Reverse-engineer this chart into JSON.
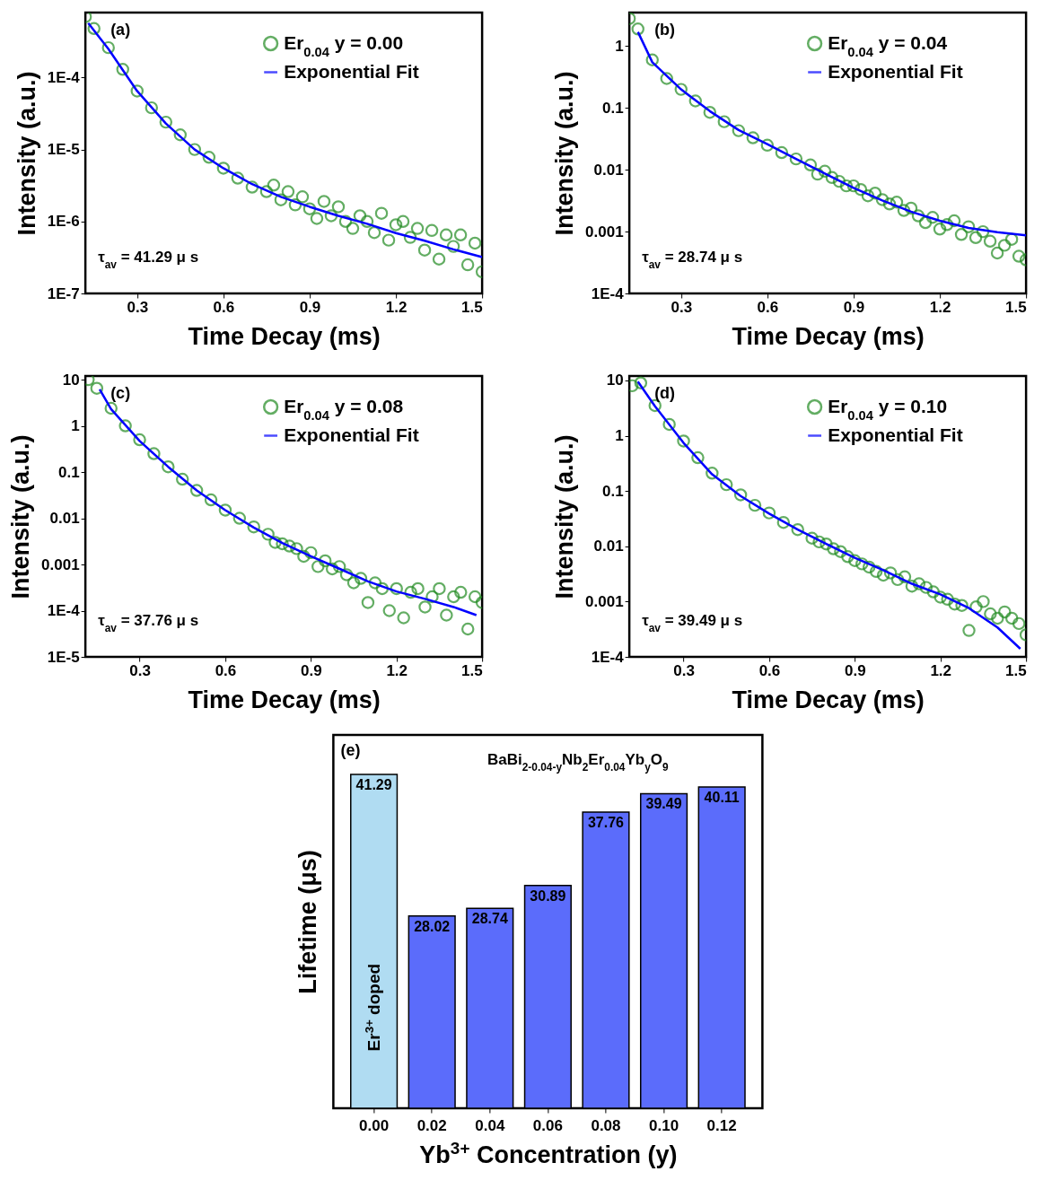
{
  "chart_data": [
    {
      "type": "scatter",
      "xlabel": "Time Decay (ms)",
      "ylabel": "Intensity (a.u.)",
      "annotations": [
        "(a)",
        "τ$_{av}$ = 41.29 μ s"
      ],
      "xlim": [
        0.12,
        1.5
      ],
      "xticks": [
        0.3,
        0.6,
        0.9,
        1.2,
        1.5
      ],
      "ylim": [
        1e-07,
        0.0008
      ],
      "yticks": [
        {
          "value": 1e-07,
          "label": "1E-7"
        },
        {
          "value": 1e-06,
          "label": "1E-6"
        },
        {
          "value": 1e-05,
          "label": "1E-5"
        },
        {
          "value": 0.0001,
          "label": "1E-4"
        }
      ],
      "log": true,
      "legend": "top right",
      "series": [
        {
          "name": "Er$_{0.04}$ y = 0.00",
          "type": "scatter",
          "marker": "circle",
          "color": "#228b22",
          "x": [
            0.12,
            0.15,
            0.2,
            0.25,
            0.3,
            0.35,
            0.4,
            0.45,
            0.5,
            0.55,
            0.6,
            0.65,
            0.7,
            0.75,
            0.775,
            0.8,
            0.825,
            0.85,
            0.875,
            0.9,
            0.925,
            0.95,
            0.975,
            1.0,
            1.025,
            1.05,
            1.075,
            1.1,
            1.125,
            1.15,
            1.175,
            1.2,
            1.225,
            1.25,
            1.275,
            1.3,
            1.325,
            1.35,
            1.375,
            1.4,
            1.425,
            1.45,
            1.475,
            1.5
          ],
          "values": [
            0.0007,
            0.00048,
            0.00026,
            0.00013,
            6.5e-05,
            3.8e-05,
            2.4e-05,
            1.6e-05,
            1e-05,
            7.8e-06,
            5.5e-06,
            4e-06,
            3e-06,
            2.6e-06,
            3.2e-06,
            2e-06,
            2.6e-06,
            1.7e-06,
            2.2e-06,
            1.5e-06,
            1.1e-06,
            1.9e-06,
            1.2e-06,
            1.6e-06,
            1e-06,
            8e-07,
            1.2e-06,
            1e-06,
            7e-07,
            1.3e-06,
            5.5e-07,
            9e-07,
            1e-06,
            6e-07,
            8e-07,
            4e-07,
            7.5e-07,
            3e-07,
            6.5e-07,
            4.5e-07,
            6.5e-07,
            2.5e-07,
            5e-07,
            2e-07
          ]
        },
        {
          "name": "Exponential Fit",
          "type": "line",
          "color": "#0000ff",
          "x": [
            0.13,
            0.2,
            0.3,
            0.4,
            0.5,
            0.6,
            0.7,
            0.8,
            0.9,
            1.0,
            1.1,
            1.2,
            1.3,
            1.4,
            1.5
          ],
          "values": [
            0.00057,
            0.00025,
            6.5e-05,
            2.3e-05,
            1e-05,
            5.5e-06,
            3.3e-06,
            2.2e-06,
            1.6e-06,
            1.2e-06,
            9.3e-07,
            6.9e-07,
            5.4e-07,
            4.1e-07,
            3.2e-07
          ]
        }
      ]
    },
    {
      "type": "scatter",
      "xlabel": "Time Decay (ms)",
      "ylabel": "Intensity (a.u.)",
      "annotations": [
        "(b)",
        "τ$_{av}$ = 28.74 μ s"
      ],
      "xlim": [
        0.12,
        1.5
      ],
      "xticks": [
        0.3,
        0.6,
        0.9,
        1.2,
        1.5
      ],
      "ylim": [
        0.0001,
        3.5
      ],
      "yticks": [
        {
          "value": 0.0001,
          "label": "1E-4"
        },
        0.001,
        0.01,
        0.1,
        1
      ],
      "log": true,
      "legend": "top right",
      "series": [
        {
          "name": "Er$_{0.04}$ y = 0.04",
          "type": "scatter",
          "marker": "circle",
          "color": "#228b22",
          "x": [
            0.12,
            0.15,
            0.2,
            0.25,
            0.3,
            0.35,
            0.4,
            0.45,
            0.5,
            0.55,
            0.6,
            0.65,
            0.7,
            0.75,
            0.775,
            0.8,
            0.825,
            0.85,
            0.875,
            0.9,
            0.925,
            0.95,
            0.975,
            1.0,
            1.025,
            1.05,
            1.075,
            1.1,
            1.125,
            1.15,
            1.175,
            1.2,
            1.225,
            1.25,
            1.275,
            1.3,
            1.325,
            1.35,
            1.375,
            1.4,
            1.425,
            1.45,
            1.475,
            1.5
          ],
          "values": [
            2.8,
            1.9,
            0.6,
            0.3,
            0.2,
            0.13,
            0.085,
            0.06,
            0.043,
            0.033,
            0.025,
            0.019,
            0.015,
            0.012,
            0.0085,
            0.0095,
            0.0075,
            0.0065,
            0.0055,
            0.0055,
            0.0048,
            0.0038,
            0.0042,
            0.0033,
            0.0028,
            0.003,
            0.0022,
            0.0024,
            0.0018,
            0.0014,
            0.0017,
            0.0011,
            0.0013,
            0.0015,
            0.0009,
            0.0012,
            0.0008,
            0.001,
            0.0007,
            0.00045,
            0.0006,
            0.00075,
            0.0004,
            0.00035
          ]
        },
        {
          "name": "Exponential Fit",
          "type": "line",
          "color": "#0000ff",
          "x": [
            0.15,
            0.2,
            0.3,
            0.4,
            0.5,
            0.6,
            0.7,
            0.8,
            0.9,
            1.0,
            1.1,
            1.2,
            1.3,
            1.4,
            1.5
          ],
          "values": [
            1.7,
            0.55,
            0.2,
            0.089,
            0.044,
            0.026,
            0.015,
            0.0087,
            0.0051,
            0.0032,
            0.0021,
            0.0015,
            0.00115,
            0.00098,
            0.00087
          ]
        }
      ]
    },
    {
      "type": "scatter",
      "xlabel": "Time Decay (ms)",
      "ylabel": "Intensity (a.u.)",
      "annotations": [
        "(c)",
        "τ$_{av}$ = 37.76 μ s"
      ],
      "xlim": [
        0.11,
        1.5
      ],
      "xticks": [
        0.3,
        0.6,
        0.9,
        1.2,
        1.5
      ],
      "ylim": [
        1e-05,
        12
      ],
      "yticks": [
        {
          "value": 1e-05,
          "label": "1E-5"
        },
        {
          "value": 0.0001,
          "label": "1E-4"
        },
        0.001,
        0.01,
        0.1,
        1,
        10
      ],
      "log": true,
      "legend": "top right",
      "series": [
        {
          "name": "Er$_{0.04}$ y = 0.08",
          "type": "scatter",
          "marker": "circle",
          "color": "#228b22",
          "x": [
            0.12,
            0.15,
            0.2,
            0.25,
            0.3,
            0.35,
            0.4,
            0.45,
            0.5,
            0.55,
            0.6,
            0.65,
            0.7,
            0.75,
            0.775,
            0.8,
            0.825,
            0.85,
            0.875,
            0.9,
            0.925,
            0.95,
            0.975,
            1.0,
            1.025,
            1.05,
            1.075,
            1.1,
            1.125,
            1.15,
            1.175,
            1.2,
            1.225,
            1.25,
            1.275,
            1.3,
            1.325,
            1.35,
            1.375,
            1.4,
            1.425,
            1.45,
            1.475,
            1.5
          ],
          "values": [
            10,
            6.5,
            2.4,
            1.0,
            0.5,
            0.25,
            0.13,
            0.07,
            0.04,
            0.025,
            0.015,
            0.01,
            0.0065,
            0.0045,
            0.003,
            0.0028,
            0.0025,
            0.0022,
            0.0015,
            0.0018,
            0.0009,
            0.0012,
            0.0008,
            0.0009,
            0.0006,
            0.0004,
            0.0005,
            0.00015,
            0.0004,
            0.0003,
            0.0001,
            0.0003,
            7e-05,
            0.00025,
            0.0003,
            0.00012,
            0.0002,
            0.0003,
            8e-05,
            0.0002,
            0.00025,
            4e-05,
            0.0002,
            0.00015
          ]
        },
        {
          "name": "Exponential Fit",
          "type": "line",
          "color": "#0000ff",
          "x": [
            0.16,
            0.2,
            0.3,
            0.4,
            0.5,
            0.6,
            0.7,
            0.8,
            0.9,
            1.0,
            1.1,
            1.2,
            1.3,
            1.4,
            1.48
          ],
          "values": [
            6.2,
            2.3,
            0.47,
            0.13,
            0.04,
            0.015,
            0.0063,
            0.0029,
            0.0015,
            0.00081,
            0.00043,
            0.00026,
            0.00018,
            0.00012,
            8e-05
          ]
        }
      ]
    },
    {
      "type": "scatter",
      "xlabel": "Time Decay (ms)",
      "ylabel": "Intensity (a.u.)",
      "annotations": [
        "(d)",
        "τ$_{av}$ = 39.49 μ s"
      ],
      "xlim": [
        0.11,
        1.5
      ],
      "xticks": [
        0.3,
        0.6,
        0.9,
        1.2,
        1.5
      ],
      "ylim": [
        0.0001,
        12
      ],
      "yticks": [
        {
          "value": 0.0001,
          "label": "1E-4"
        },
        0.001,
        0.01,
        0.1,
        1,
        10
      ],
      "log": true,
      "legend": "top right",
      "series": [
        {
          "name": "Er$_{0.04}$ y = 0.10",
          "type": "scatter",
          "marker": "circle",
          "color": "#228b22",
          "x": [
            0.12,
            0.15,
            0.2,
            0.25,
            0.3,
            0.35,
            0.4,
            0.45,
            0.5,
            0.55,
            0.6,
            0.65,
            0.7,
            0.75,
            0.775,
            0.8,
            0.825,
            0.85,
            0.875,
            0.9,
            0.925,
            0.95,
            0.975,
            1.0,
            1.025,
            1.05,
            1.075,
            1.1,
            1.125,
            1.15,
            1.175,
            1.2,
            1.225,
            1.25,
            1.275,
            1.3,
            1.325,
            1.35,
            1.375,
            1.4,
            1.425,
            1.45,
            1.475,
            1.5
          ],
          "values": [
            8,
            9,
            3.5,
            1.6,
            0.8,
            0.4,
            0.21,
            0.13,
            0.085,
            0.055,
            0.04,
            0.027,
            0.02,
            0.014,
            0.012,
            0.011,
            0.009,
            0.008,
            0.0065,
            0.0055,
            0.0048,
            0.0042,
            0.0035,
            0.003,
            0.0033,
            0.0025,
            0.0028,
            0.0019,
            0.0021,
            0.0018,
            0.0015,
            0.0012,
            0.0011,
            0.0009,
            0.00085,
            0.0003,
            0.0008,
            0.001,
            0.0006,
            0.0005,
            0.00065,
            0.0005,
            0.0004,
            0.00025
          ]
        },
        {
          "name": "Exponential Fit",
          "type": "line",
          "color": "#0000ff",
          "x": [
            0.14,
            0.2,
            0.3,
            0.4,
            0.5,
            0.6,
            0.7,
            0.8,
            0.9,
            1.0,
            1.1,
            1.2,
            1.3,
            1.4,
            1.48
          ],
          "values": [
            9.5,
            3.4,
            0.74,
            0.2,
            0.081,
            0.039,
            0.02,
            0.011,
            0.0062,
            0.0037,
            0.0021,
            0.00135,
            0.00076,
            0.00034,
            0.00014
          ]
        }
      ]
    },
    {
      "type": "bar",
      "xlabel": "Yb$^{3+}$ Concentration (y)",
      "ylabel": "Lifetime (μs)",
      "annotations": [
        "(e)",
        "BaBi$_{2-0.04-y}$Nb$_{2}$Er$_{0.04}$Yb$_{y}$O$_{9}$",
        "Er$^{3+}$ doped"
      ],
      "categories": [
        "0.00",
        "0.02",
        "0.04",
        "0.06",
        "0.08",
        "0.10",
        "0.12"
      ],
      "values": [
        41.29,
        28.02,
        28.74,
        30.89,
        37.76,
        39.49,
        40.11
      ],
      "colors": [
        "#b0dcf2",
        "#5b6cfb",
        "#5b6cfb",
        "#5b6cfb",
        "#5b6cfb",
        "#5b6cfb",
        "#5b6cfb"
      ],
      "ylim": [
        10,
        45
      ],
      "data_labels": true,
      "tick_labels": "x"
    }
  ]
}
